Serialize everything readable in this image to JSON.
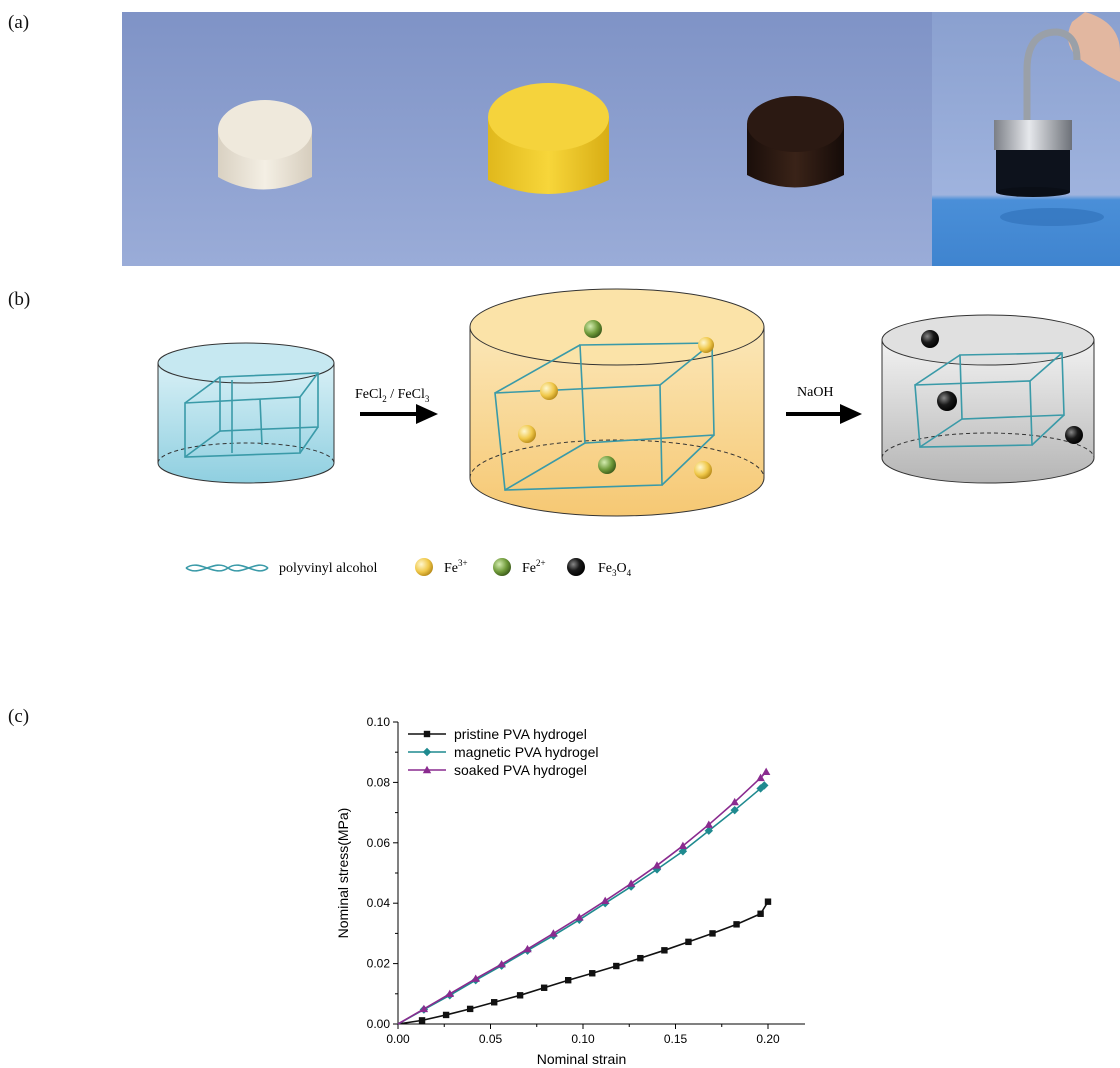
{
  "figure": {
    "panel_a_label": "(a)",
    "panel_b_label": "(b)",
    "panel_c_label": "(c)"
  },
  "photos": {
    "items": [
      {
        "name": "pristine-sample",
        "color": "#ece6d8"
      },
      {
        "name": "soaked-sample",
        "color": "#f2cf2a"
      },
      {
        "name": "magnetic-sample",
        "color": "#2a1a14"
      },
      {
        "name": "magnet-lifting-sample",
        "color": "#0f1420"
      }
    ],
    "background": "#8b9fcf"
  },
  "scheme": {
    "step1_reagent_main": "FeCl",
    "step1_sub1": "2",
    "step1_sep": " / FeCl",
    "step1_sub2": "3",
    "step2_reagent": "NaOH",
    "legend": {
      "pva_label": "polyvinyl alcohol",
      "fe3_label": "Fe",
      "fe3_sup": "3+",
      "fe2_label": "Fe",
      "fe2_sup": "2+",
      "fe3o4_label_a": "Fe",
      "fe3o4_sub_a": "3",
      "fe3o4_label_b": "O",
      "fe3o4_sub_b": "4"
    },
    "colors": {
      "blue_gel": "#a9dbe8",
      "yellow_gel": "#f9d98a",
      "grey_gel": "#c9c9c9",
      "network": "#3a9aa8",
      "fe3": "#f0c84a",
      "fe2": "#6f9a3a",
      "fe3o4": "#111111"
    }
  },
  "chart_data": {
    "type": "line",
    "xlabel": "Nominal strain",
    "ylabel": "Nominal stress(MPa)",
    "xlim": [
      0,
      0.22
    ],
    "ylim": [
      0,
      0.1
    ],
    "xticks": [
      "0.00",
      "0.05",
      "0.10",
      "0.15",
      "0.20"
    ],
    "yticks": [
      "0.00",
      "0.02",
      "0.04",
      "0.06",
      "0.08",
      "0.10"
    ],
    "legend_position": "top-left",
    "grid": false,
    "series": [
      {
        "name": "pristine PVA hydrogel",
        "color": "#111111",
        "marker": "square",
        "x": [
          0,
          0.013,
          0.026,
          0.039,
          0.052,
          0.066,
          0.079,
          0.092,
          0.105,
          0.118,
          0.131,
          0.144,
          0.157,
          0.17,
          0.183,
          0.196,
          0.2
        ],
        "y": [
          0,
          0.0012,
          0.003,
          0.005,
          0.0072,
          0.0095,
          0.012,
          0.0145,
          0.0168,
          0.0192,
          0.0218,
          0.0244,
          0.0272,
          0.03,
          0.033,
          0.0365,
          0.0405
        ]
      },
      {
        "name": "magnetic PVA hydrogel",
        "color": "#1f8a8f",
        "marker": "diamond",
        "x": [
          0,
          0.014,
          0.028,
          0.042,
          0.056,
          0.07,
          0.084,
          0.098,
          0.112,
          0.126,
          0.14,
          0.154,
          0.168,
          0.182,
          0.196,
          0.198
        ],
        "y": [
          0,
          0.0048,
          0.0095,
          0.0145,
          0.0193,
          0.0243,
          0.0293,
          0.0345,
          0.04,
          0.0455,
          0.0512,
          0.0572,
          0.064,
          0.0708,
          0.078,
          0.079
        ]
      },
      {
        "name": "soaked PVA hydrogel",
        "color": "#8a2b8f",
        "marker": "triangle",
        "x": [
          0,
          0.014,
          0.028,
          0.042,
          0.056,
          0.07,
          0.084,
          0.098,
          0.112,
          0.126,
          0.14,
          0.154,
          0.168,
          0.182,
          0.196,
          0.199
        ],
        "y": [
          0,
          0.005,
          0.01,
          0.015,
          0.0198,
          0.0248,
          0.03,
          0.0353,
          0.0408,
          0.0465,
          0.0525,
          0.059,
          0.066,
          0.0735,
          0.0815,
          0.0835
        ]
      }
    ]
  }
}
